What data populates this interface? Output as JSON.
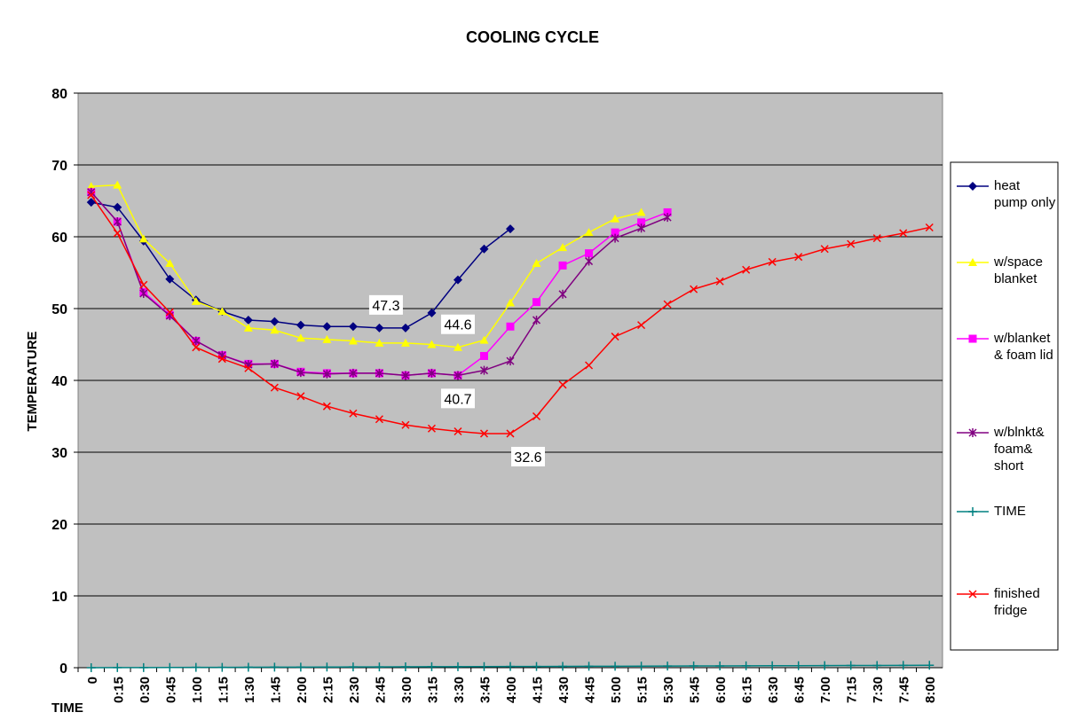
{
  "chart_data": {
    "type": "line",
    "title": "COOLING CYCLE",
    "y_label": "TEMPERATURE",
    "x_label": "TIME",
    "categories": [
      "0",
      "0:15",
      "0:30",
      "0:45",
      "1:00",
      "1:15",
      "1:30",
      "1:45",
      "2:00",
      "2:15",
      "2:30",
      "2:45",
      "3:00",
      "3:15",
      "3:30",
      "3:45",
      "4:00",
      "4:15",
      "4:30",
      "4:45",
      "5:00",
      "5:15",
      "5:30",
      "5:45",
      "6:00",
      "6:15",
      "6:30",
      "6:45",
      "7:00",
      "7:15",
      "7:30",
      "7:45",
      "8:00"
    ],
    "ylim": [
      0,
      80
    ],
    "yticks": [
      0,
      10,
      20,
      30,
      40,
      50,
      60,
      70,
      80
    ],
    "grid": true,
    "legend": "right",
    "series": [
      {
        "name": "heat pump only",
        "color": "#000080",
        "marker": "diamond",
        "values": [
          64.8,
          64.1,
          59.4,
          54.1,
          51.2,
          49.6,
          48.4,
          48.2,
          47.7,
          47.5,
          47.5,
          47.3,
          47.3,
          49.4,
          54.0,
          58.3,
          61.1,
          null,
          null,
          null,
          null,
          null,
          null,
          null,
          null,
          null,
          null,
          null,
          null,
          null,
          null,
          null,
          null
        ],
        "value_labels": [
          null,
          null,
          null,
          null,
          null,
          null,
          null,
          null,
          null,
          null,
          null,
          null,
          "47.3",
          null,
          null,
          null,
          null,
          null,
          null,
          null,
          null,
          null,
          null,
          null,
          null,
          null,
          null,
          null,
          null,
          null,
          null,
          null,
          null
        ]
      },
      {
        "name": "w/space blanket",
        "color": "#ffff00",
        "marker": "triangle",
        "values": [
          67.0,
          67.2,
          59.7,
          56.3,
          51.0,
          49.6,
          47.3,
          47.0,
          45.9,
          45.7,
          45.5,
          45.2,
          45.2,
          45.0,
          44.6,
          45.6,
          50.8,
          56.3,
          58.5,
          60.6,
          62.5,
          63.4,
          null,
          null,
          null,
          null,
          null,
          null,
          null,
          null,
          null,
          null,
          null
        ],
        "value_labels": [
          null,
          null,
          null,
          null,
          null,
          null,
          null,
          null,
          null,
          null,
          null,
          null,
          null,
          null,
          "44.6",
          null,
          null,
          null,
          null,
          null,
          null,
          null,
          null,
          null,
          null,
          null,
          null,
          null,
          null,
          null,
          null,
          null,
          null
        ]
      },
      {
        "name": "w/blanket& foam lid",
        "color": "#ff00ff",
        "marker": "square",
        "values": [
          66.2,
          62.1,
          52.3,
          49.1,
          45.5,
          43.5,
          42.3,
          42.3,
          41.2,
          41.0,
          41.0,
          41.0,
          40.7,
          41.0,
          40.7,
          43.4,
          47.5,
          50.9,
          56.0,
          57.7,
          60.6,
          62.0,
          63.4,
          null,
          null,
          null,
          null,
          null,
          null,
          null,
          null,
          null,
          null
        ],
        "value_labels": [
          null,
          null,
          null,
          null,
          null,
          null,
          null,
          null,
          null,
          null,
          null,
          null,
          null,
          null,
          "40.7",
          null,
          null,
          null,
          null,
          null,
          null,
          null,
          null,
          null,
          null,
          null,
          null,
          null,
          null,
          null,
          null,
          null,
          null
        ]
      },
      {
        "name": "w/blnkt& foam& short",
        "color": "#800080",
        "marker": "star",
        "values": [
          66.2,
          62.1,
          52.1,
          49.0,
          45.5,
          43.5,
          42.2,
          42.3,
          41.1,
          40.9,
          41.0,
          41.0,
          40.7,
          41.0,
          40.7,
          41.4,
          42.7,
          48.4,
          52.0,
          56.6,
          59.8,
          61.2,
          62.7,
          null,
          null,
          null,
          null,
          null,
          null,
          null,
          null,
          null,
          null
        ]
      },
      {
        "name": "TIME",
        "color": "#008080",
        "marker": "plus",
        "values": [
          0,
          0.01,
          0.021,
          0.031,
          0.042,
          0.052,
          0.063,
          0.073,
          0.083,
          0.094,
          0.104,
          0.115,
          0.125,
          0.135,
          0.146,
          0.156,
          0.167,
          0.177,
          0.188,
          0.198,
          0.208,
          0.219,
          0.229,
          0.24,
          0.25,
          0.26,
          0.271,
          0.281,
          0.292,
          0.302,
          0.313,
          0.323,
          0.333
        ]
      },
      {
        "name": "finished fridge",
        "color": "#ff0000",
        "marker": "x",
        "values": [
          65.8,
          60.5,
          53.3,
          49.5,
          44.6,
          43.0,
          41.7,
          39.0,
          37.8,
          36.4,
          35.4,
          34.6,
          33.8,
          33.3,
          32.9,
          32.6,
          32.6,
          35.0,
          39.4,
          42.1,
          46.1,
          47.7,
          50.6,
          52.7,
          53.8,
          55.4,
          56.5,
          57.2,
          58.3,
          59.0,
          59.8,
          60.5,
          61.3
        ],
        "value_labels": [
          null,
          null,
          null,
          null,
          null,
          null,
          null,
          null,
          null,
          null,
          null,
          null,
          null,
          null,
          null,
          null,
          "32.6",
          null,
          null,
          null,
          null,
          null,
          null,
          null,
          null,
          null,
          null,
          null,
          null,
          null,
          null,
          null,
          null
        ]
      }
    ]
  }
}
